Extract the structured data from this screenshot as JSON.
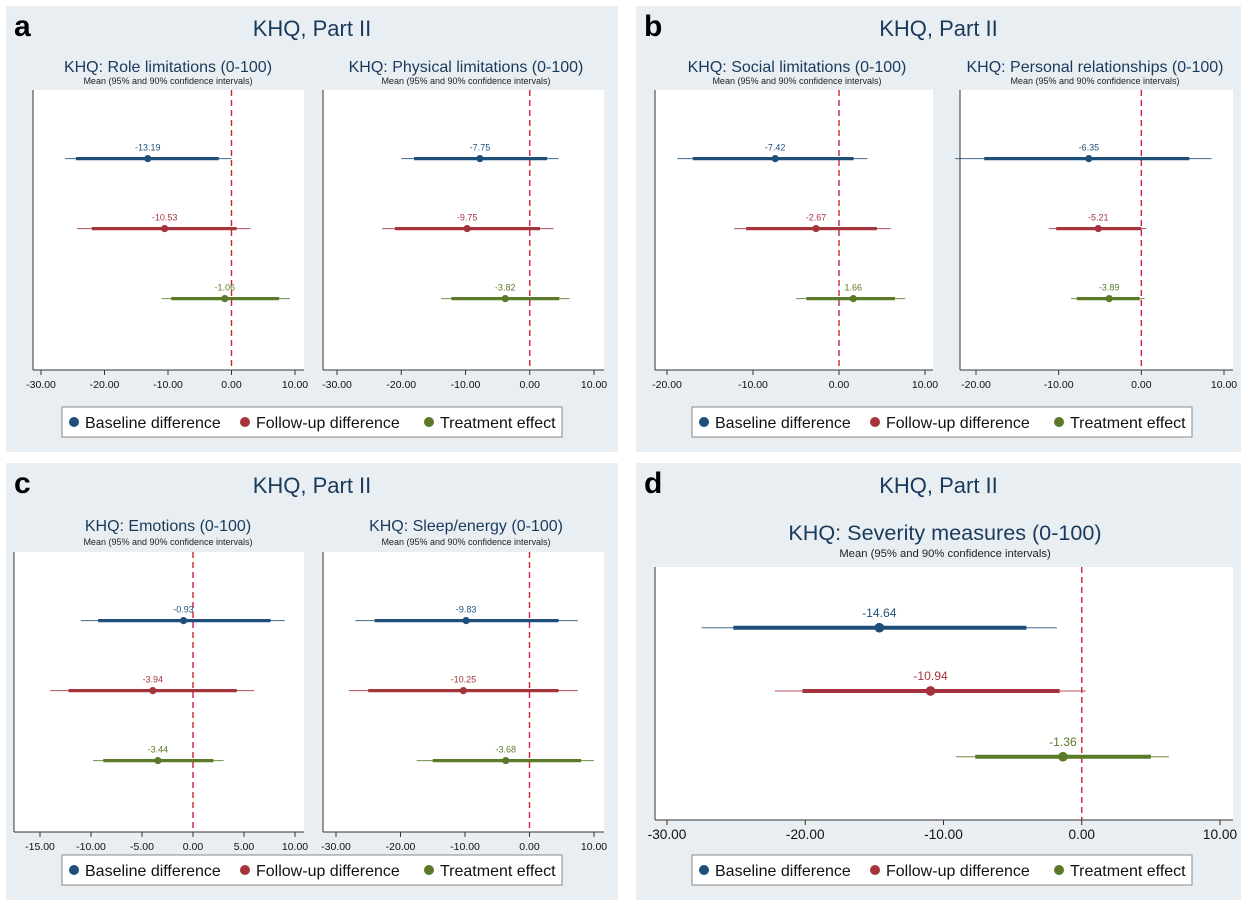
{
  "colors": {
    "panel_bg": "#e8eef1",
    "title": "#1a3a5c",
    "baseline": "#1f4e79",
    "followup": "#a5333c",
    "treatment": "#5a7a2a",
    "zero_line": "#cc2233"
  },
  "legend": {
    "items": [
      {
        "label": "Baseline difference",
        "color_key": "baseline"
      },
      {
        "label": "Follow-up difference",
        "color_key": "followup"
      },
      {
        "label": "Treatment effect",
        "color_key": "treatment"
      }
    ]
  },
  "panels": [
    {
      "letter": "a",
      "title": "KHQ, Part II",
      "charts": [
        {
          "title": "KHQ: Role limitations (0-100)",
          "subtitle": "Mean (95% and 90% confidence intervals)",
          "ticks": [
            "-30.00",
            "-20.00",
            "-10.00",
            "0.00",
            "10.00"
          ],
          "tick_values": [
            -30,
            -20,
            -10,
            0,
            10
          ],
          "xlim": [
            -30,
            10
          ]
        },
        {
          "title": "KHQ: Physical limitations (0-100)",
          "subtitle": "Mean (95% and 90% confidence intervals)",
          "ticks": [
            "-30.00",
            "-20.00",
            "-10.00",
            "0.00",
            "10.00"
          ],
          "tick_values": [
            -30,
            -20,
            -10,
            0,
            10
          ],
          "xlim": [
            -30,
            10
          ]
        }
      ]
    },
    {
      "letter": "b",
      "title": "KHQ, Part II",
      "charts": [
        {
          "title": "KHQ: Social limitations (0-100)",
          "subtitle": "Mean (95% and 90% confidence intervals)",
          "ticks": [
            "-20.00",
            "-10.00",
            "0.00",
            "10.00"
          ],
          "tick_values": [
            -20,
            -10,
            0,
            10
          ],
          "xlim": [
            -20,
            10
          ]
        },
        {
          "title": "KHQ: Personal relationships (0-100)",
          "subtitle": "Mean (95% and 90% confidence intervals)",
          "ticks": [
            "-20.00",
            "-10.00",
            "0.00",
            "10.00"
          ],
          "tick_values": [
            -20,
            -10,
            0,
            10
          ],
          "xlim": [
            -20,
            10
          ]
        }
      ]
    },
    {
      "letter": "c",
      "title": "KHQ, Part II",
      "charts": [
        {
          "title": "KHQ: Emotions (0-100)",
          "subtitle": "Mean (95% and 90% confidence intervals)",
          "ticks": [
            "-15.00",
            "-10.00",
            "-5.00",
            "0.00",
            "5.00",
            "10.00"
          ],
          "tick_values": [
            -15,
            -10,
            -5,
            0,
            5,
            10
          ],
          "xlim": [
            -15,
            10
          ]
        },
        {
          "title": "KHQ: Sleep/energy (0-100)",
          "subtitle": "Mean (95% and 90% confidence intervals)",
          "ticks": [
            "-30.00",
            "-20.00",
            "-10.00",
            "0.00",
            "10.00"
          ],
          "tick_values": [
            -30,
            -20,
            -10,
            0,
            10
          ],
          "xlim": [
            -30,
            10
          ]
        }
      ]
    },
    {
      "letter": "d",
      "title": "KHQ, Part II",
      "charts": [
        {
          "title": "KHQ: Severity measures (0-100)",
          "subtitle": "Mean (95% and 90% confidence intervals)",
          "ticks": [
            "-30.00",
            "-20.00",
            "-10.00",
            "0.00",
            "10.00"
          ],
          "tick_values": [
            -30,
            -20,
            -10,
            0,
            10
          ],
          "xlim": [
            -30,
            10
          ]
        }
      ]
    }
  ],
  "chart_data": [
    {
      "type": "scatter",
      "title": "KHQ: Role limitations (0-100)",
      "xlim": [
        -30,
        10
      ],
      "zero_line": 0,
      "series": [
        {
          "name": "Baseline difference",
          "estimate": -13.19,
          "label": "-13.19",
          "ci95": [
            -26.2,
            0.0
          ],
          "ci90": [
            -24.5,
            -2.0
          ]
        },
        {
          "name": "Follow-up difference",
          "estimate": -10.53,
          "label": "-10.53",
          "ci95": [
            -24.3,
            3.0
          ],
          "ci90": [
            -22.0,
            0.8
          ]
        },
        {
          "name": "Treatment effect",
          "estimate": -1.06,
          "label": "-1.06",
          "ci95": [
            -11.0,
            9.2
          ],
          "ci90": [
            -9.5,
            7.5
          ]
        }
      ]
    },
    {
      "type": "scatter",
      "title": "KHQ: Physical limitations (0-100)",
      "xlim": [
        -30,
        10
      ],
      "zero_line": 0,
      "series": [
        {
          "name": "Baseline difference",
          "estimate": -7.75,
          "label": "-7.75",
          "ci95": [
            -20.0,
            4.5
          ],
          "ci90": [
            -18.0,
            2.7
          ]
        },
        {
          "name": "Follow-up difference",
          "estimate": -9.75,
          "label": "-9.75",
          "ci95": [
            -23.0,
            3.7
          ],
          "ci90": [
            -21.0,
            1.6
          ]
        },
        {
          "name": "Treatment effect",
          "estimate": -3.82,
          "label": "-3.82",
          "ci95": [
            -13.8,
            6.2
          ],
          "ci90": [
            -12.2,
            4.6
          ]
        }
      ]
    },
    {
      "type": "scatter",
      "title": "KHQ: Social limitations (0-100)",
      "xlim": [
        -20,
        10
      ],
      "zero_line": 0,
      "series": [
        {
          "name": "Baseline difference",
          "estimate": -7.42,
          "label": "-7.42",
          "ci95": [
            -18.8,
            3.3
          ],
          "ci90": [
            -17.0,
            1.7
          ]
        },
        {
          "name": "Follow-up difference",
          "estimate": -2.67,
          "label": "-2.67",
          "ci95": [
            -12.2,
            6.0
          ],
          "ci90": [
            -10.8,
            4.4
          ]
        },
        {
          "name": "Treatment effect",
          "estimate": 1.66,
          "label": "1.66",
          "ci95": [
            -5.0,
            7.7
          ],
          "ci90": [
            -3.8,
            6.5
          ]
        }
      ]
    },
    {
      "type": "scatter",
      "title": "KHQ: Personal relationships (0-100)",
      "xlim": [
        -20,
        10
      ],
      "zero_line": 0,
      "series": [
        {
          "name": "Baseline difference",
          "estimate": -6.35,
          "label": "-6.35",
          "ci95": [
            -22.5,
            8.5
          ],
          "ci90": [
            -19.0,
            5.8
          ]
        },
        {
          "name": "Follow-up difference",
          "estimate": -5.21,
          "label": "-5.21",
          "ci95": [
            -11.2,
            0.6
          ],
          "ci90": [
            -10.3,
            0.0
          ]
        },
        {
          "name": "Treatment effect",
          "estimate": -3.89,
          "label": "-3.89",
          "ci95": [
            -8.5,
            0.4
          ],
          "ci90": [
            -7.8,
            -0.2
          ]
        }
      ]
    },
    {
      "type": "scatter",
      "title": "KHQ: Emotions (0-100)",
      "xlim": [
        -15,
        10
      ],
      "zero_line": 0,
      "series": [
        {
          "name": "Baseline difference",
          "estimate": -0.93,
          "label": "-0.93",
          "ci95": [
            -11.0,
            9.0
          ],
          "ci90": [
            -9.3,
            7.6
          ]
        },
        {
          "name": "Follow-up difference",
          "estimate": -3.94,
          "label": "-3.94",
          "ci95": [
            -14.0,
            6.0
          ],
          "ci90": [
            -12.2,
            4.3
          ]
        },
        {
          "name": "Treatment effect",
          "estimate": -3.44,
          "label": "-3.44",
          "ci95": [
            -9.8,
            3.0
          ],
          "ci90": [
            -8.8,
            2.0
          ]
        }
      ]
    },
    {
      "type": "scatter",
      "title": "KHQ: Sleep/energy (0-100)",
      "xlim": [
        -30,
        10
      ],
      "zero_line": 0,
      "series": [
        {
          "name": "Baseline difference",
          "estimate": -9.83,
          "label": "-9.83",
          "ci95": [
            -27.0,
            7.5
          ],
          "ci90": [
            -24.0,
            4.5
          ]
        },
        {
          "name": "Follow-up difference",
          "estimate": -10.25,
          "label": "-10.25",
          "ci95": [
            -28.0,
            7.5
          ],
          "ci90": [
            -25.0,
            4.5
          ]
        },
        {
          "name": "Treatment effect",
          "estimate": -3.68,
          "label": "-3.68",
          "ci95": [
            -17.5,
            10.0
          ],
          "ci90": [
            -15.0,
            8.0
          ]
        }
      ]
    },
    {
      "type": "scatter",
      "title": "KHQ: Severity measures (0-100)",
      "xlim": [
        -30,
        10
      ],
      "zero_line": 0,
      "series": [
        {
          "name": "Baseline difference",
          "estimate": -14.64,
          "label": "-14.64",
          "ci95": [
            -27.5,
            -1.8
          ],
          "ci90": [
            -25.2,
            -4.0
          ]
        },
        {
          "name": "Follow-up difference",
          "estimate": -10.94,
          "label": "-10.94",
          "ci95": [
            -22.2,
            0.3
          ],
          "ci90": [
            -20.2,
            -1.6
          ]
        },
        {
          "name": "Treatment effect",
          "estimate": -1.36,
          "label": "-1.36",
          "ci95": [
            -9.1,
            6.3
          ],
          "ci90": [
            -7.7,
            5.0
          ]
        }
      ]
    }
  ]
}
